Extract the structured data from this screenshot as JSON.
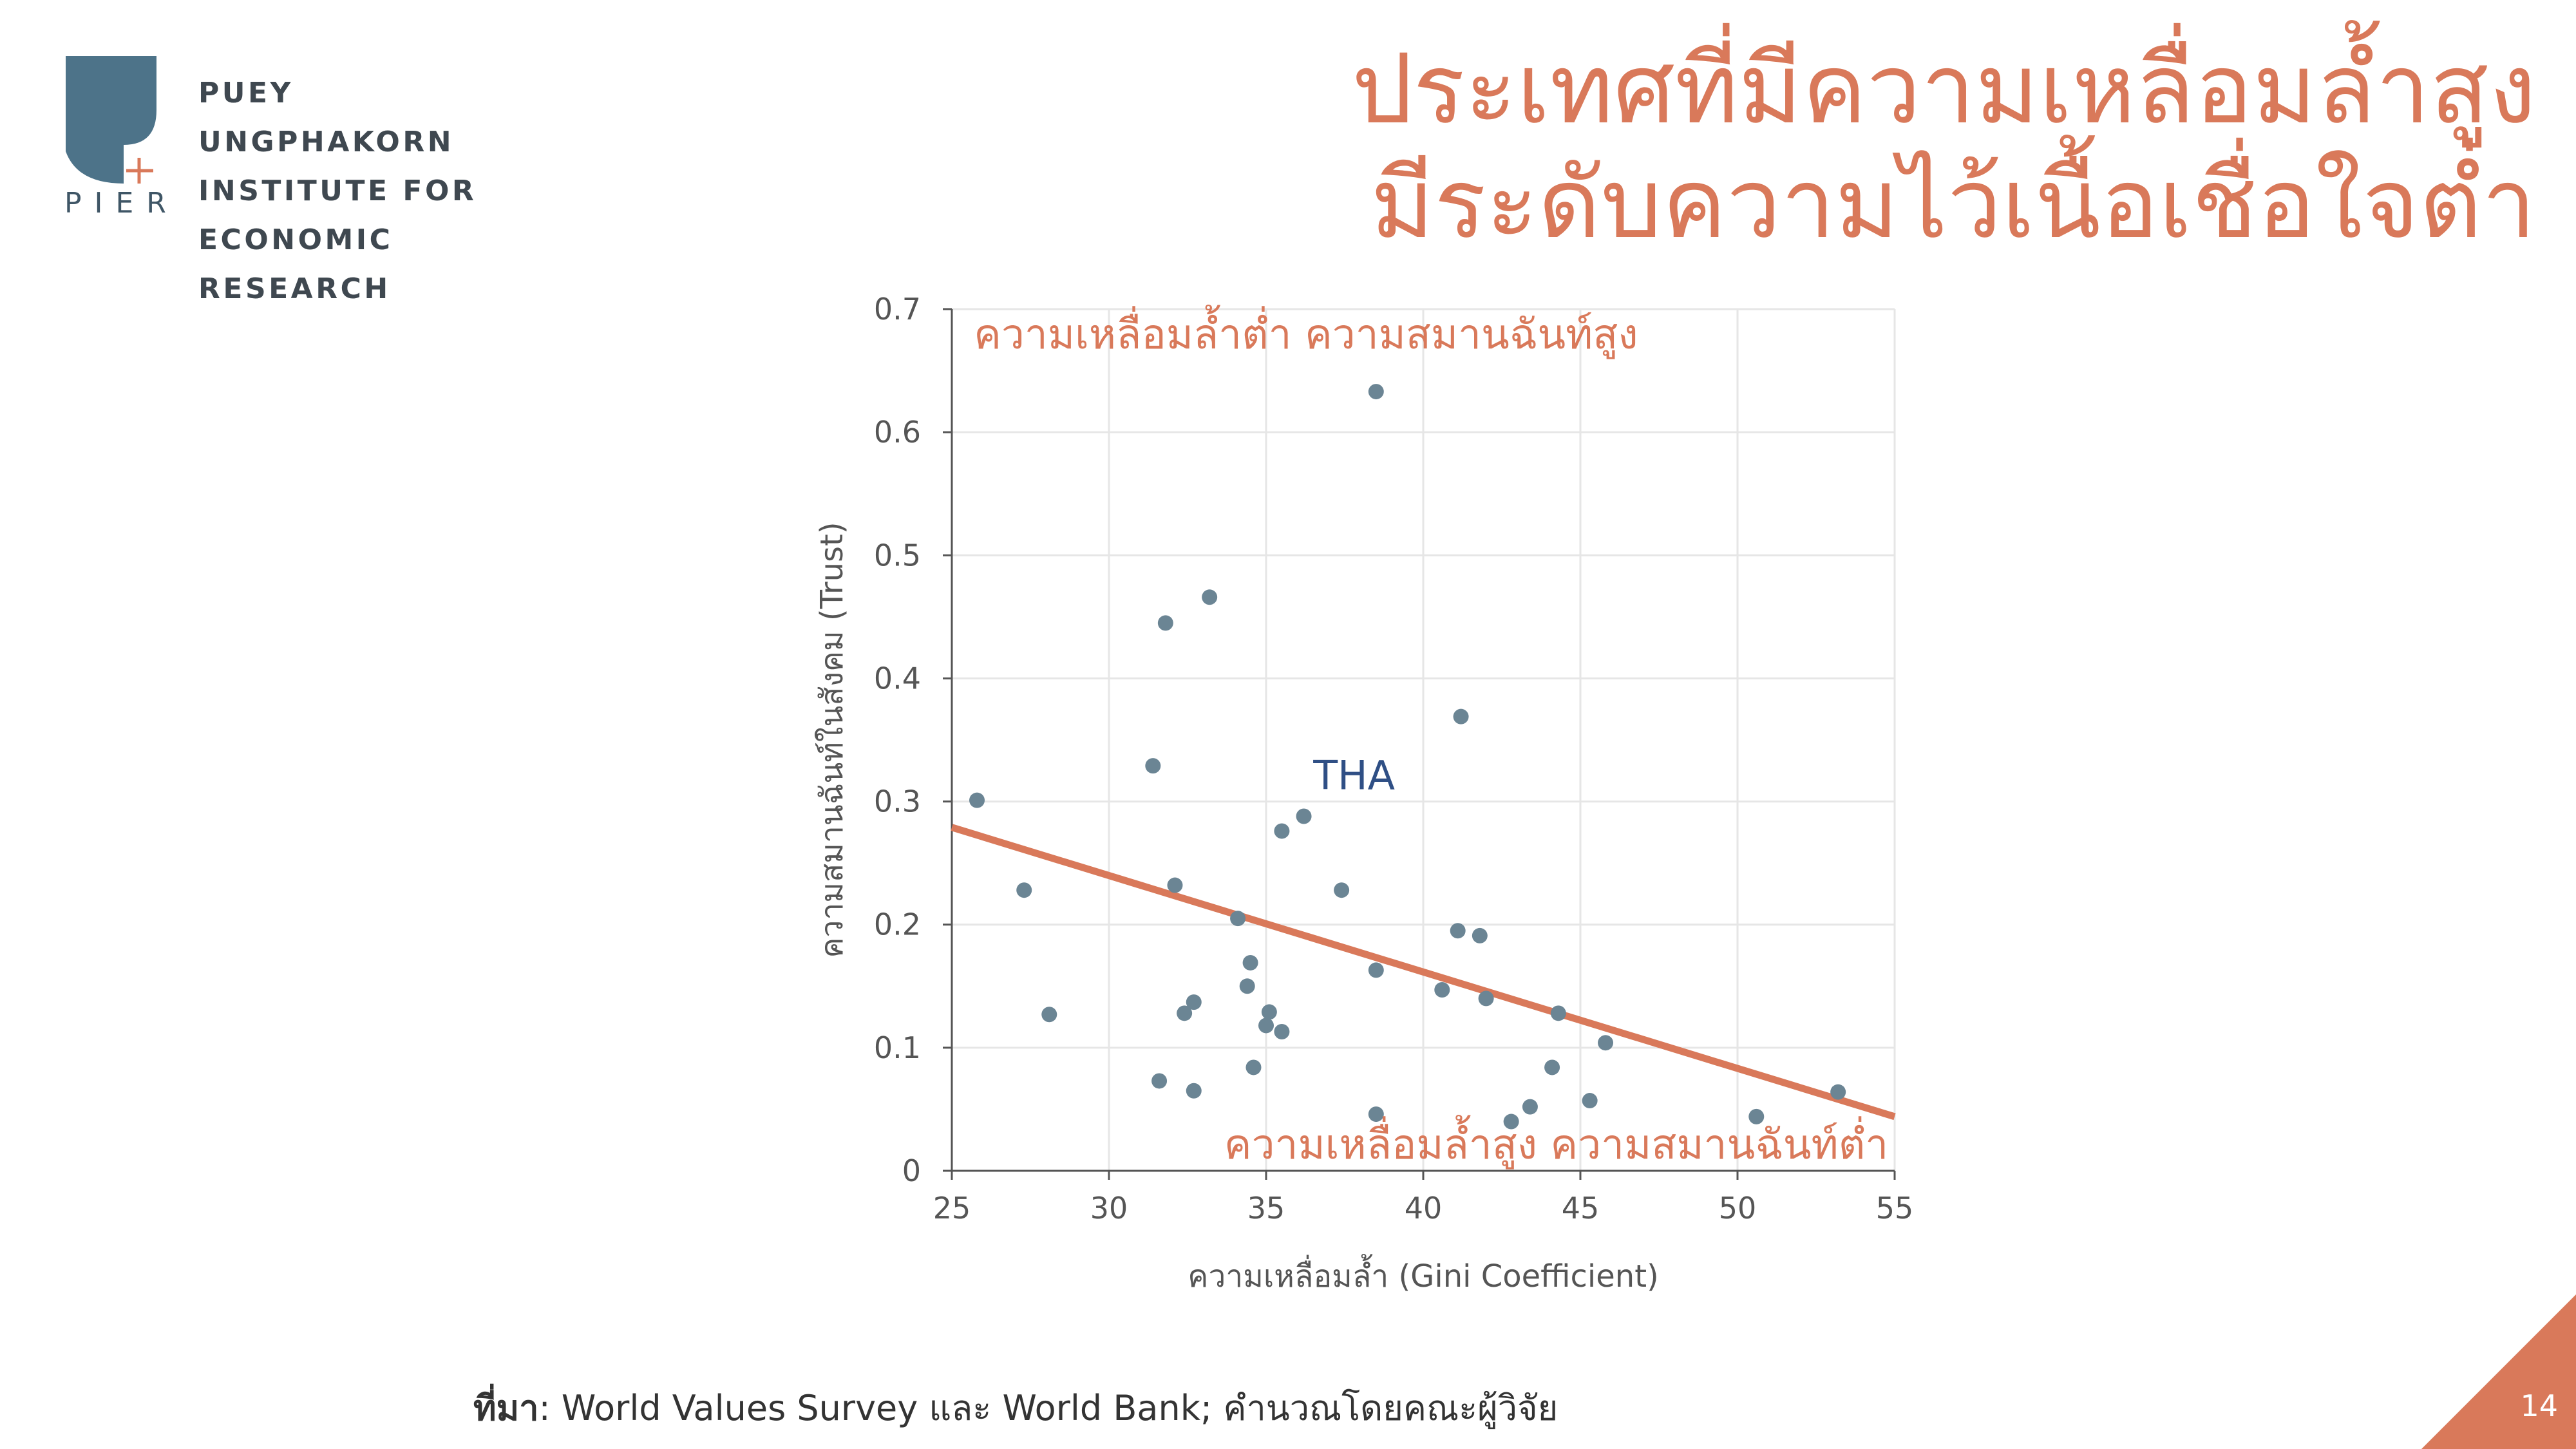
{
  "logo": {
    "lines": [
      "PUEY UNGPHAKORN",
      "INSTITUTE FOR",
      "ECONOMIC RESEARCH"
    ],
    "mark_text": "PIER"
  },
  "header": {
    "title_line1": "ประเทศที่มีความเหลื่อมล้ำสูง",
    "title_line2": "มีระดับความไว้เนื้อเชื่อใจต่ำ"
  },
  "colors": {
    "accent": "#d9795a",
    "point": "#6b8594",
    "label_blue": "#2f4f85",
    "logo_blue": "#4d7389"
  },
  "chart_data": {
    "type": "scatter",
    "xlabel": "ความเหลื่อมล้ำ (Gini Coefficient)",
    "ylabel": "ความสมานฉันท์ในสังคม (Trust)",
    "xlim": [
      25,
      55
    ],
    "ylim": [
      0,
      0.7
    ],
    "xticks": [
      25,
      30,
      35,
      40,
      45,
      50,
      55
    ],
    "yticks": [
      0,
      0.1,
      0.2,
      0.3,
      0.4,
      0.5,
      0.6,
      0.7
    ],
    "xtick_labels": [
      "25",
      "30",
      "35",
      "40",
      "45",
      "50",
      "55"
    ],
    "ytick_labels": [
      "0",
      "0.1",
      "0.2",
      "0.3",
      "0.4",
      "0.5",
      "0.6",
      "0.7"
    ],
    "grid": true,
    "points": [
      {
        "x": 25.8,
        "y": 0.301
      },
      {
        "x": 27.3,
        "y": 0.228
      },
      {
        "x": 28.1,
        "y": 0.127
      },
      {
        "x": 31.4,
        "y": 0.329
      },
      {
        "x": 31.6,
        "y": 0.073
      },
      {
        "x": 31.8,
        "y": 0.445
      },
      {
        "x": 32.1,
        "y": 0.232
      },
      {
        "x": 32.4,
        "y": 0.128
      },
      {
        "x": 32.7,
        "y": 0.137
      },
      {
        "x": 32.7,
        "y": 0.065
      },
      {
        "x": 33.2,
        "y": 0.466
      },
      {
        "x": 34.1,
        "y": 0.205
      },
      {
        "x": 34.4,
        "y": 0.15
      },
      {
        "x": 34.5,
        "y": 0.169
      },
      {
        "x": 34.6,
        "y": 0.084
      },
      {
        "x": 35.0,
        "y": 0.118
      },
      {
        "x": 35.1,
        "y": 0.129
      },
      {
        "x": 35.5,
        "y": 0.276
      },
      {
        "x": 35.5,
        "y": 0.113
      },
      {
        "x": 36.2,
        "y": 0.288
      },
      {
        "x": 37.4,
        "y": 0.228
      },
      {
        "x": 38.5,
        "y": 0.633
      },
      {
        "x": 38.5,
        "y": 0.163
      },
      {
        "x": 38.5,
        "y": 0.046
      },
      {
        "x": 40.6,
        "y": 0.147
      },
      {
        "x": 41.1,
        "y": 0.195
      },
      {
        "x": 41.2,
        "y": 0.369
      },
      {
        "x": 41.8,
        "y": 0.191
      },
      {
        "x": 42.0,
        "y": 0.14
      },
      {
        "x": 42.8,
        "y": 0.04
      },
      {
        "x": 43.4,
        "y": 0.052
      },
      {
        "x": 44.1,
        "y": 0.084
      },
      {
        "x": 44.3,
        "y": 0.128
      },
      {
        "x": 45.3,
        "y": 0.057
      },
      {
        "x": 45.8,
        "y": 0.104
      },
      {
        "x": 50.6,
        "y": 0.044
      },
      {
        "x": 53.2,
        "y": 0.064
      }
    ],
    "trendline": {
      "x": [
        25,
        55
      ],
      "y": [
        0.279,
        0.044
      ]
    },
    "annotations": {
      "thailand": {
        "text": "THA",
        "x": 36.5,
        "y": 0.31
      },
      "top_left": {
        "text": "ความเหลื่อมล้ำต่ำ ความสมานฉันท์สูง",
        "x": 25.7,
        "y": 0.668
      },
      "bottom_right": {
        "text": "ความเหลื่อมล้ำสูง ความสมานฉันท์ต่ำ",
        "x": 54.8,
        "y": 0.01
      }
    }
  },
  "footer": {
    "source_label": "ที่มา",
    "source_text": ": World Values Survey และ World Bank; คำนวณโดยคณะผู้วิจัย",
    "page_number": "14"
  }
}
